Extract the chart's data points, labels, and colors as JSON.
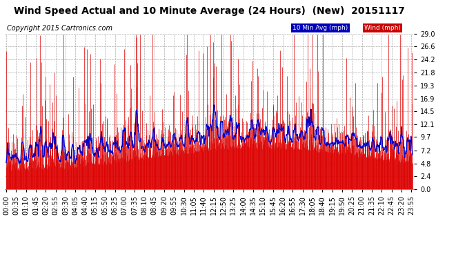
{
  "title": "Wind Speed Actual and 10 Minute Average (24 Hours)  (New)  20151117",
  "copyright": "Copyright 2015 Cartronics.com",
  "yticks": [
    0.0,
    2.4,
    4.8,
    7.2,
    9.7,
    12.1,
    14.5,
    16.9,
    19.3,
    21.8,
    24.2,
    26.6,
    29.0
  ],
  "ymax": 29.0,
  "ymin": 0.0,
  "legend_labels": [
    "10 Min Avg (mph)",
    "Wind (mph)"
  ],
  "legend_bg_colors": [
    "#0000bb",
    "#cc0000"
  ],
  "legend_text_colors": [
    "white",
    "white"
  ],
  "wind_color": "#dd0000",
  "avg_color": "#0000cc",
  "bg_color": "#ffffff",
  "plot_bg_color": "#ffffff",
  "grid_color": "#aaaaaa",
  "title_fontsize": 10,
  "copyright_fontsize": 7,
  "tick_fontsize": 7
}
